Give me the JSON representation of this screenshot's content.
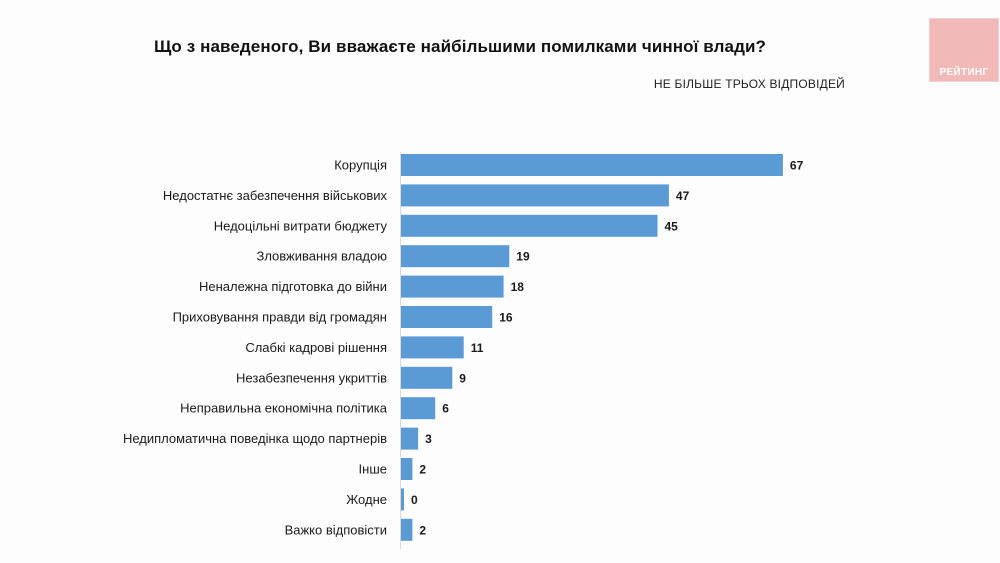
{
  "chart_data": {
    "type": "bar",
    "orientation": "horizontal",
    "title": "Що з наведеного, Ви вважаєте найбільшими помилками чинної влади?",
    "subtitle": "НЕ БІЛЬШЕ ТРЬОХ ВІДПОВІДЕЙ",
    "categories": [
      "Корупція",
      "Недостатнє забезпечення військових",
      "Недоцільні витрати бюджету",
      "Зловживання владою",
      "Неналежна підготовка до війни",
      "Приховування правди від громадян",
      "Слабкі кадрові рішення",
      "Незабезпечення укриттів",
      "Неправильна економічна політика",
      "Недипломатична поведінка щодо партнерів",
      "Інше",
      "Жодне",
      "Важко відповісти"
    ],
    "values": [
      67,
      47,
      45,
      19,
      18,
      16,
      11,
      9,
      6,
      3,
      2,
      0,
      2
    ],
    "xlim": [
      0,
      70
    ],
    "xlabel": "",
    "ylabel": "",
    "bar_color": "#5b9bd5",
    "grid": false,
    "legend": "none"
  },
  "brand": {
    "logo_text": "РЕЙТИНГ",
    "logo_color": "#f2b9b9"
  }
}
